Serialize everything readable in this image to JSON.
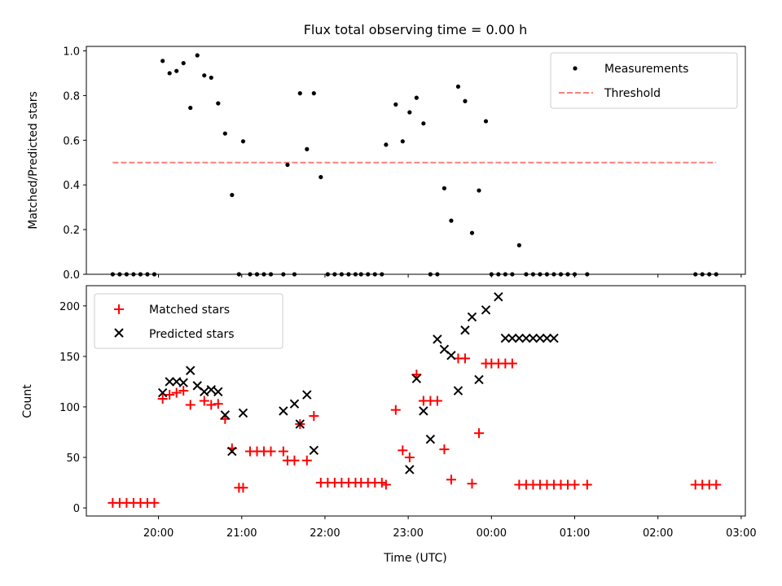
{
  "figure": {
    "title": "Flux total observing time = 0.00 h"
  },
  "chart_data": [
    {
      "type": "scatter",
      "panel": "top",
      "title": "Flux total observing time = 0.00 h",
      "xlabel": "",
      "ylabel": "Matched/Predicted stars",
      "ylim": [
        0,
        1.02
      ],
      "yticks": [
        0.0,
        0.2,
        0.4,
        0.6,
        0.8,
        1.0
      ],
      "ytick_labels": [
        "0.0",
        "0.2",
        "0.4",
        "0.6",
        "0.8",
        "1.0"
      ],
      "legend_position": "top-right",
      "grid": false,
      "colors": {
        "measurements": "#000000",
        "threshold": "#ff7f7f"
      },
      "series": [
        {
          "name": "Measurements",
          "marker": "dot",
          "x": [
            "19:27",
            "19:32",
            "19:37",
            "19:42",
            "19:47",
            "19:52",
            "19:57",
            "20:03",
            "20:08",
            "20:13",
            "20:18",
            "20:23",
            "20:28",
            "20:33",
            "20:38",
            "20:43",
            "20:48",
            "20:53",
            "20:58",
            "21:01",
            "21:06",
            "21:11",
            "21:16",
            "21:21",
            "21:30",
            "21:33",
            "21:38",
            "21:42",
            "21:47",
            "21:52",
            "21:57",
            "22:02",
            "22:07",
            "22:12",
            "22:17",
            "22:22",
            "22:26",
            "22:31",
            "22:36",
            "22:41",
            "22:44",
            "22:51",
            "22:56",
            "23:01",
            "23:06",
            "23:11",
            "23:16",
            "23:21",
            "23:26",
            "23:31",
            "23:36",
            "23:41",
            "23:46",
            "23:51",
            "23:56",
            "00:00",
            "00:05",
            "00:10",
            "00:15",
            "00:20",
            "00:25",
            "00:30",
            "00:35",
            "00:40",
            "00:45",
            "00:50",
            "00:55",
            "01:00",
            "01:09",
            "02:27",
            "02:32",
            "02:37",
            "02:42"
          ],
          "y": [
            0.0,
            0.0,
            0.0,
            0.0,
            0.0,
            0.0,
            0.0,
            0.955,
            0.9,
            0.91,
            0.945,
            0.745,
            0.98,
            0.89,
            0.88,
            0.765,
            0.63,
            0.355,
            0.0,
            0.595,
            0.0,
            0.0,
            0.0,
            0.0,
            0.0,
            0.49,
            0.0,
            0.81,
            0.56,
            0.81,
            0.435,
            0.0,
            0.0,
            0.0,
            0.0,
            0.0,
            0.0,
            0.0,
            0.0,
            0.0,
            0.58,
            0.76,
            0.595,
            0.725,
            0.79,
            0.675,
            0.0,
            0.0,
            0.385,
            0.24,
            0.84,
            0.775,
            0.185,
            0.375,
            0.685,
            0.0,
            0.0,
            0.0,
            0.0,
            0.13,
            0.0,
            0.0,
            0.0,
            0.0,
            0.0,
            0.0,
            0.0,
            0.0,
            0.0,
            0.0,
            0.0,
            0.0,
            0.0
          ]
        },
        {
          "name": "Threshold",
          "marker": "dashed-line",
          "x": [
            "19:27",
            "02:42"
          ],
          "y": [
            0.5,
            0.5
          ]
        }
      ]
    },
    {
      "type": "scatter",
      "panel": "bottom",
      "xlabel": "Time (UTC)",
      "ylabel": "Count",
      "ylim": [
        -8,
        220
      ],
      "yticks": [
        0,
        50,
        100,
        150,
        200
      ],
      "ytick_labels": [
        "0",
        "50",
        "100",
        "150",
        "200"
      ],
      "xlim": [
        "19:08",
        "03:03"
      ],
      "xticks": [
        "20:00",
        "21:00",
        "22:00",
        "23:00",
        "00:00",
        "01:00",
        "02:00",
        "03:00"
      ],
      "xtick_labels": [
        "20:00",
        "21:00",
        "22:00",
        "23:00",
        "00:00",
        "01:00",
        "02:00",
        "03:00"
      ],
      "legend_position": "top-left",
      "grid": false,
      "colors": {
        "matched": "#ff0000",
        "predicted": "#000000"
      },
      "series": [
        {
          "name": "Matched stars",
          "marker": "plus",
          "x": [
            "19:27",
            "19:32",
            "19:37",
            "19:42",
            "19:47",
            "19:52",
            "19:57",
            "20:03",
            "20:08",
            "20:13",
            "20:18",
            "20:23",
            "20:33",
            "20:38",
            "20:43",
            "20:48",
            "20:53",
            "20:58",
            "21:01",
            "21:06",
            "21:11",
            "21:16",
            "21:21",
            "21:30",
            "21:33",
            "21:38",
            "21:42",
            "21:47",
            "21:52",
            "21:57",
            "22:02",
            "22:07",
            "22:12",
            "22:17",
            "22:22",
            "22:26",
            "22:31",
            "22:36",
            "22:41",
            "22:44",
            "22:51",
            "22:56",
            "23:01",
            "23:06",
            "23:11",
            "23:16",
            "23:21",
            "23:26",
            "23:31",
            "23:36",
            "23:41",
            "23:46",
            "23:51",
            "23:56",
            "00:00",
            "00:05",
            "00:10",
            "00:15",
            "00:20",
            "00:25",
            "00:30",
            "00:35",
            "00:40",
            "00:45",
            "00:50",
            "00:55",
            "01:00",
            "01:09",
            "02:27",
            "02:32",
            "02:37",
            "02:42"
          ],
          "y": [
            5,
            5,
            5,
            5,
            5,
            5,
            5,
            108,
            112,
            114,
            116,
            102,
            106,
            102,
            103,
            88,
            59,
            20,
            20,
            56,
            56,
            56,
            56,
            56,
            47,
            47,
            83,
            47,
            91,
            25,
            25,
            25,
            25,
            25,
            25,
            25,
            25,
            25,
            25,
            23,
            97,
            57,
            50,
            132,
            106,
            106,
            106,
            58,
            28,
            148,
            148,
            24,
            74,
            143,
            143,
            143,
            143,
            143,
            23,
            23,
            23,
            23,
            23,
            23,
            23,
            23,
            23,
            23,
            23,
            23,
            23,
            23
          ],
          "x_note": ""
        },
        {
          "name": "Predicted stars",
          "marker": "cross",
          "x": [
            "20:03",
            "20:08",
            "20:13",
            "20:18",
            "20:23",
            "20:28",
            "20:33",
            "20:38",
            "20:43",
            "20:48",
            "20:53",
            "21:01",
            "21:30",
            "21:38",
            "21:42",
            "21:47",
            "21:52",
            "23:01",
            "23:06",
            "23:11",
            "23:16",
            "23:21",
            "23:26",
            "23:31",
            "23:36",
            "23:41",
            "23:46",
            "23:51",
            "23:56",
            "00:05",
            "00:10",
            "00:15",
            "00:20",
            "00:25",
            "00:30",
            "00:35",
            "00:40",
            "00:45"
          ],
          "y": [
            114,
            125,
            125,
            124,
            136,
            121,
            115,
            117,
            115,
            92,
            56,
            94,
            96,
            103,
            83,
            112,
            57,
            38,
            128,
            96,
            68,
            167,
            157,
            151,
            116,
            176,
            189,
            127,
            196,
            209,
            168,
            168,
            168,
            168,
            168,
            168,
            168,
            168
          ]
        }
      ]
    }
  ]
}
